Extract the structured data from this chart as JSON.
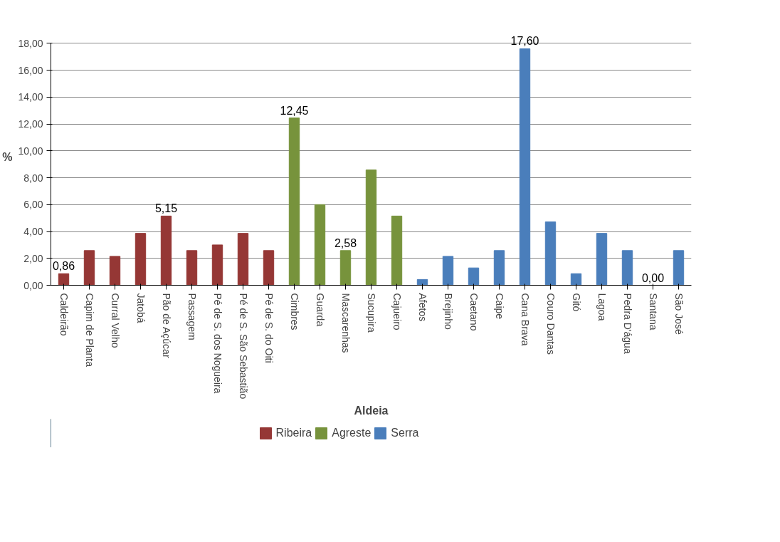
{
  "chart_data": {
    "type": "bar",
    "xlabel": "Aldeia",
    "ylabel": "%",
    "categories": [
      "Caldeirão",
      "Capim de Planta",
      "Curral Velho",
      "Jatobá",
      "Pão de Açúcar",
      "Passagem",
      "Pé de S. dos Nogueira",
      "Pé de S. São Sebastião",
      "Pé de S. do Oiti",
      "Cimbres",
      "Guarda",
      "Mascarenhas",
      "Sucupira",
      "Cajueiro",
      "Afetos",
      "Brejinho",
      "Caetano",
      "Caipe",
      "Cana Brava",
      "Couro Dantas",
      "Gitó",
      "Lagoa",
      "Pedra D'água",
      "Santana",
      "São José"
    ],
    "series": [
      {
        "name": "Ribeira",
        "color": "#953735",
        "values": [
          0.86,
          2.58,
          2.15,
          3.86,
          5.15,
          2.58,
          3.0,
          3.86,
          2.58,
          null,
          null,
          null,
          null,
          null,
          null,
          null,
          null,
          null,
          null,
          null,
          null,
          null,
          null,
          null,
          null
        ],
        "value_labels": [
          "0,86",
          null,
          null,
          null,
          "5,15",
          null,
          null,
          null,
          null,
          null,
          null,
          null,
          null,
          null,
          null,
          null,
          null,
          null,
          null,
          null,
          null,
          null,
          null,
          null,
          null
        ]
      },
      {
        "name": "Agreste",
        "color": "#77933c",
        "values": [
          null,
          null,
          null,
          null,
          null,
          null,
          null,
          null,
          null,
          12.45,
          6.0,
          2.58,
          8.58,
          5.15,
          null,
          null,
          null,
          null,
          null,
          null,
          null,
          null,
          null,
          null,
          null
        ],
        "value_labels": [
          null,
          null,
          null,
          null,
          null,
          null,
          null,
          null,
          null,
          "12,45",
          null,
          "2,58",
          null,
          null,
          null,
          null,
          null,
          null,
          null,
          null,
          null,
          null,
          null,
          null,
          null
        ]
      },
      {
        "name": "Serra",
        "color": "#4a7ebb",
        "values": [
          null,
          null,
          null,
          null,
          null,
          null,
          null,
          null,
          null,
          null,
          null,
          null,
          null,
          null,
          0.43,
          2.15,
          1.29,
          2.58,
          17.6,
          4.72,
          0.86,
          3.86,
          2.58,
          0.0,
          2.58
        ],
        "value_labels": [
          null,
          null,
          null,
          null,
          null,
          null,
          null,
          null,
          null,
          null,
          null,
          null,
          null,
          null,
          null,
          null,
          null,
          null,
          "17,60",
          null,
          null,
          null,
          null,
          "0,00",
          null
        ]
      }
    ],
    "ylim": [
      0,
      18
    ],
    "yticks": [
      {
        "value": 0,
        "label": "0,00"
      },
      {
        "value": 2,
        "label": "2,00"
      },
      {
        "value": 4,
        "label": "4,00"
      },
      {
        "value": 6,
        "label": "6,00"
      },
      {
        "value": 8,
        "label": "8,00"
      },
      {
        "value": 10,
        "label": "10,00"
      },
      {
        "value": 12,
        "label": "12,00"
      },
      {
        "value": 14,
        "label": "14,00"
      },
      {
        "value": 16,
        "label": "16,00"
      },
      {
        "value": 18,
        "label": "18,00"
      }
    ],
    "grid": "y",
    "legend": "bottom"
  }
}
